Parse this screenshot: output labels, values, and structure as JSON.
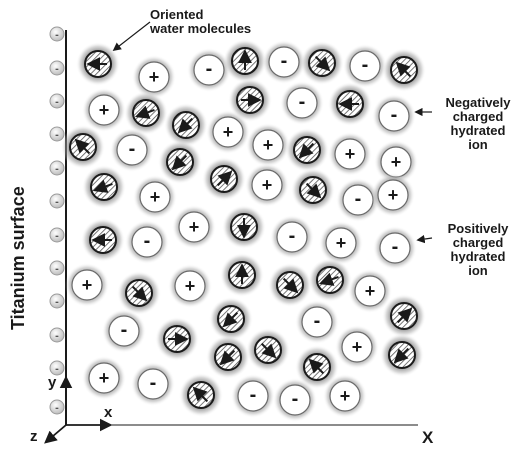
{
  "labels": {
    "surface": "Titanium surface",
    "water": [
      "Oriented",
      "water molecules"
    ],
    "negative_ion": [
      "Negatively",
      "charged",
      "hydrated",
      "ion"
    ],
    "positive_ion": [
      "Positively",
      "charged",
      "hydrated",
      "ion"
    ],
    "axis_y": "y",
    "axis_x_small": "x",
    "axis_z": "z",
    "axis_X": "X"
  },
  "symbols": {
    "plus": "+",
    "minus": "-"
  },
  "colors": {
    "ink": "#1a1a1a",
    "surface_charge": "#d6d6d6",
    "halo": "#808080",
    "hatch": "#555555"
  },
  "particles": [
    {
      "kind": "water",
      "angle": 180
    },
    {
      "kind": "plus"
    },
    {
      "kind": "minus"
    },
    {
      "kind": "water",
      "angle": 90
    },
    {
      "kind": "minus"
    },
    {
      "kind": "water",
      "angle": -45
    },
    {
      "kind": "minus"
    },
    {
      "kind": "water",
      "angle": 135
    },
    {
      "kind": "plus"
    },
    {
      "kind": "water",
      "angle": 200
    },
    {
      "kind": "water",
      "angle": 225
    },
    {
      "kind": "plus"
    },
    {
      "kind": "water",
      "angle": 0
    },
    {
      "kind": "minus"
    },
    {
      "kind": "water",
      "angle": 180
    },
    {
      "kind": "minus"
    },
    {
      "kind": "water",
      "angle": 135
    },
    {
      "kind": "minus"
    },
    {
      "kind": "water",
      "angle": 225
    },
    {
      "kind": "plus"
    },
    {
      "kind": "water",
      "angle": 225
    },
    {
      "kind": "plus"
    },
    {
      "kind": "plus"
    },
    {
      "kind": "water",
      "angle": 200
    },
    {
      "kind": "plus"
    },
    {
      "kind": "water",
      "angle": 45
    },
    {
      "kind": "plus"
    },
    {
      "kind": "water",
      "angle": -45
    },
    {
      "kind": "minus"
    },
    {
      "kind": "plus"
    },
    {
      "kind": "water",
      "angle": 180
    },
    {
      "kind": "minus"
    },
    {
      "kind": "plus"
    },
    {
      "kind": "water",
      "angle": -90
    },
    {
      "kind": "minus"
    },
    {
      "kind": "plus"
    },
    {
      "kind": "minus"
    },
    {
      "kind": "plus"
    },
    {
      "kind": "water",
      "angle": -45
    },
    {
      "kind": "plus"
    },
    {
      "kind": "water",
      "angle": 90
    },
    {
      "kind": "water",
      "angle": -45
    },
    {
      "kind": "water",
      "angle": 200
    },
    {
      "kind": "plus"
    },
    {
      "kind": "water",
      "angle": 45
    },
    {
      "kind": "minus"
    },
    {
      "kind": "water",
      "angle": 0
    },
    {
      "kind": "water",
      "angle": 225
    },
    {
      "kind": "minus"
    },
    {
      "kind": "water",
      "angle": -45
    },
    {
      "kind": "plus"
    },
    {
      "kind": "water",
      "angle": 225
    },
    {
      "kind": "water",
      "angle": 225
    },
    {
      "kind": "water",
      "angle": 135
    },
    {
      "kind": "plus"
    },
    {
      "kind": "minus"
    },
    {
      "kind": "water",
      "angle": 135
    },
    {
      "kind": "minus"
    },
    {
      "kind": "minus"
    },
    {
      "kind": "plus"
    }
  ],
  "surface_charges": [
    "-",
    "-",
    "-",
    "-",
    "-",
    "-",
    "-",
    "-",
    "-",
    "-",
    "-",
    "-"
  ]
}
